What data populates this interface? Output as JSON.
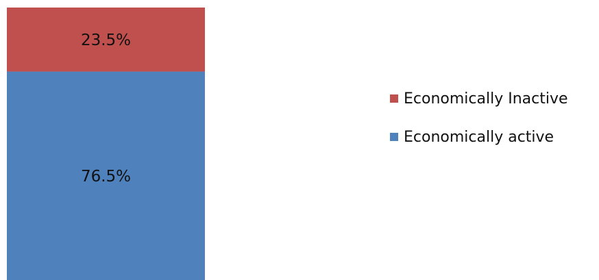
{
  "chart_data": {
    "type": "bar",
    "stacked": true,
    "percent_stacked": true,
    "categories": [
      ""
    ],
    "series": [
      {
        "name": "Economically active",
        "values": [
          76.5
        ],
        "color": "#4F81BD",
        "label": "76.5%"
      },
      {
        "name": "Economically Inactive",
        "values": [
          23.5
        ],
        "color": "#C0504D",
        "label": "23.5%"
      }
    ],
    "ylim": [
      0,
      100
    ],
    "grid": false,
    "axes_visible": false,
    "legend_position": "right"
  },
  "legend": {
    "items": [
      {
        "label": "Economically Inactive",
        "color": "#C0504D"
      },
      {
        "label": "Economically active",
        "color": "#4F81BD"
      }
    ]
  }
}
